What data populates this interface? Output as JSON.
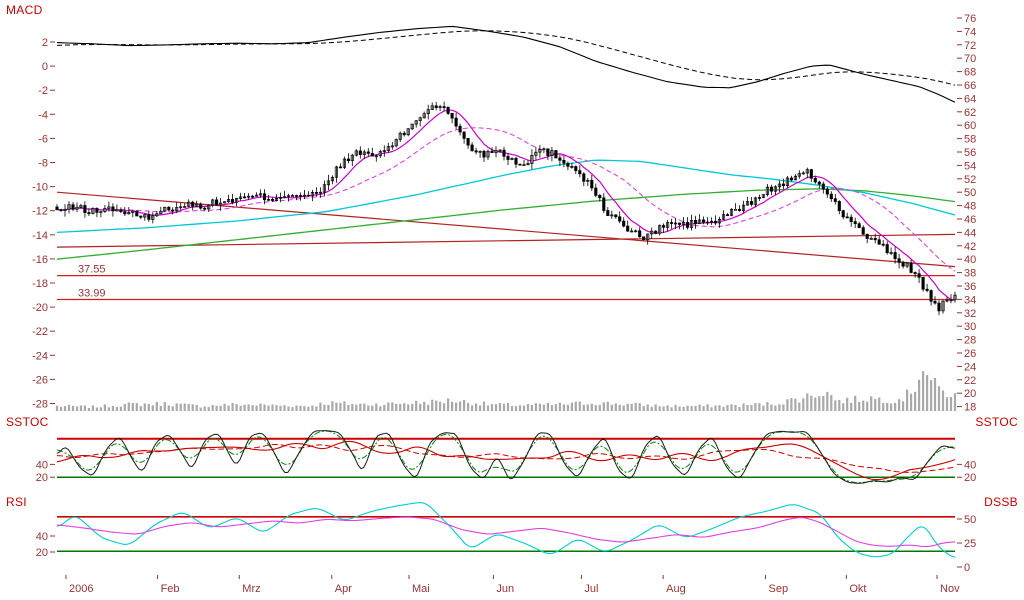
{
  "labels": {
    "macd": "MACD",
    "sstoc_left": "SSTOC",
    "sstoc_right": "SSTOC",
    "rsi": "RSI",
    "dssb": "DSSB"
  },
  "colors": {
    "background": "#ffffff",
    "axis_text": "#993333",
    "panel_label": "#cc0000",
    "candle": "#000000",
    "candle_up_fill": "#ffffff",
    "candle_down_fill": "#000000",
    "volume": "#a8a8a8",
    "macd_line": "#000000",
    "ma_fast": "#cc00cc",
    "ma_fast2": "#dd44dd",
    "ma_mid": "#00c8d8",
    "ma_long": "#2fae2f",
    "trendline": "#b22222",
    "hline": "#cc2222",
    "osc_fast": "#1a1a1a",
    "osc_d": "#008800",
    "osc_slow": "#cc0000",
    "osc_hline_hi": "#cc0000",
    "osc_hline_lo": "#007700",
    "rsi_line": "#e040e0",
    "dssb_line": "#00cfcf"
  },
  "chart_data": {
    "type": "candlestick-with-indicators",
    "x_axis": {
      "months": [
        {
          "label": "2006",
          "f": 0.01
        },
        {
          "label": "Feb",
          "f": 0.112
        },
        {
          "label": "Mrz",
          "f": 0.203
        },
        {
          "label": "Apr",
          "f": 0.306
        },
        {
          "label": "Mai",
          "f": 0.392
        },
        {
          "label": "Jun",
          "f": 0.486
        },
        {
          "label": "Jul",
          "f": 0.584
        },
        {
          "label": "Aug",
          "f": 0.675
        },
        {
          "label": "Sep",
          "f": 0.789
        },
        {
          "label": "Okt",
          "f": 0.879
        },
        {
          "label": "Nov",
          "f": 0.98
        }
      ]
    },
    "main_panel": {
      "left_axis_title": "MACD",
      "left_axis_range": [
        2,
        -28
      ],
      "left_ticks": [
        2,
        0,
        -2,
        -4,
        -6,
        -8,
        -10,
        -12,
        -14,
        -16,
        -18,
        -20,
        -22,
        -24,
        -26,
        -28
      ],
      "right_axis_range": [
        76,
        18
      ],
      "right_ticks": [
        76,
        74,
        72,
        70,
        68,
        66,
        64,
        62,
        60,
        58,
        56,
        54,
        52,
        50,
        48,
        46,
        44,
        42,
        40,
        38,
        36,
        34,
        32,
        30,
        28,
        26,
        24,
        22,
        20,
        18
      ],
      "hlines": [
        {
          "value": 37.55,
          "label": "37.55"
        },
        {
          "value": 33.99,
          "label": "33.99"
        }
      ],
      "trendlines": [
        {
          "p1": [
            0,
            50.0
          ],
          "p2": [
            1,
            38.9
          ]
        },
        {
          "p1": [
            0,
            41.8
          ],
          "p2": [
            1,
            43.7
          ]
        }
      ],
      "price_anchors": [
        [
          0,
          47.2
        ],
        [
          0.02,
          47.8
        ],
        [
          0.04,
          47.1
        ],
        [
          0.06,
          47.6
        ],
        [
          0.08,
          46.9
        ],
        [
          0.095,
          46.1
        ],
        [
          0.11,
          46.8
        ],
        [
          0.125,
          47.6
        ],
        [
          0.14,
          48.2
        ],
        [
          0.16,
          47.9
        ],
        [
          0.18,
          48.5
        ],
        [
          0.2,
          48.9
        ],
        [
          0.22,
          49.4
        ],
        [
          0.24,
          49.1
        ],
        [
          0.26,
          49.8
        ],
        [
          0.28,
          49.4
        ],
        [
          0.295,
          50.1
        ],
        [
          0.31,
          53.2
        ],
        [
          0.325,
          55.3
        ],
        [
          0.34,
          55.9
        ],
        [
          0.355,
          55.4
        ],
        [
          0.37,
          56.8
        ],
        [
          0.385,
          58.6
        ],
        [
          0.4,
          60.8
        ],
        [
          0.415,
          62.6
        ],
        [
          0.425,
          63.2
        ],
        [
          0.435,
          61.8
        ],
        [
          0.45,
          58.8
        ],
        [
          0.462,
          56.4
        ],
        [
          0.475,
          55.6
        ],
        [
          0.49,
          56.6
        ],
        [
          0.505,
          54.9
        ],
        [
          0.52,
          54.2
        ],
        [
          0.535,
          56.2
        ],
        [
          0.55,
          55.9
        ],
        [
          0.565,
          54.6
        ],
        [
          0.58,
          53.2
        ],
        [
          0.595,
          50.8
        ],
        [
          0.61,
          47.4
        ],
        [
          0.625,
          45.6
        ],
        [
          0.64,
          44.1
        ],
        [
          0.655,
          43.1
        ],
        [
          0.67,
          44.6
        ],
        [
          0.685,
          45.6
        ],
        [
          0.7,
          44.9
        ],
        [
          0.715,
          45.9
        ],
        [
          0.73,
          45.3
        ],
        [
          0.745,
          46.6
        ],
        [
          0.76,
          47.6
        ],
        [
          0.775,
          48.7
        ],
        [
          0.79,
          50.2
        ],
        [
          0.805,
          51.2
        ],
        [
          0.82,
          52.1
        ],
        [
          0.835,
          52.9
        ],
        [
          0.85,
          51.2
        ],
        [
          0.865,
          48.6
        ],
        [
          0.88,
          46.1
        ],
        [
          0.895,
          44.2
        ],
        [
          0.91,
          42.6
        ],
        [
          0.925,
          41.2
        ],
        [
          0.94,
          39.6
        ],
        [
          0.952,
          38.4
        ],
        [
          0.962,
          36.6
        ],
        [
          0.972,
          34.2
        ],
        [
          0.98,
          32.4
        ],
        [
          0.99,
          33.6
        ],
        [
          1,
          34.1
        ]
      ],
      "macd_anchors": [
        [
          0,
          1.95
        ],
        [
          0.04,
          1.85
        ],
        [
          0.08,
          1.7
        ],
        [
          0.12,
          1.75
        ],
        [
          0.16,
          1.85
        ],
        [
          0.2,
          1.9
        ],
        [
          0.24,
          1.85
        ],
        [
          0.28,
          1.95
        ],
        [
          0.32,
          2.4
        ],
        [
          0.36,
          2.8
        ],
        [
          0.4,
          3.1
        ],
        [
          0.44,
          3.3
        ],
        [
          0.48,
          2.9
        ],
        [
          0.52,
          2.4
        ],
        [
          0.56,
          1.6
        ],
        [
          0.6,
          0.4
        ],
        [
          0.64,
          -0.5
        ],
        [
          0.68,
          -1.3
        ],
        [
          0.72,
          -1.75
        ],
        [
          0.75,
          -1.8
        ],
        [
          0.78,
          -1.3
        ],
        [
          0.81,
          -0.6
        ],
        [
          0.84,
          0.0
        ],
        [
          0.86,
          0.1
        ],
        [
          0.88,
          -0.3
        ],
        [
          0.9,
          -0.7
        ],
        [
          0.93,
          -1.2
        ],
        [
          0.96,
          -1.7
        ],
        [
          0.98,
          -2.3
        ],
        [
          1,
          -3.0
        ]
      ],
      "ma_mid_anchors": [
        [
          0,
          44.0
        ],
        [
          0.1,
          44.7
        ],
        [
          0.2,
          45.7
        ],
        [
          0.3,
          47.1
        ],
        [
          0.4,
          49.6
        ],
        [
          0.5,
          52.6
        ],
        [
          0.55,
          53.9
        ],
        [
          0.6,
          54.8
        ],
        [
          0.65,
          54.6
        ],
        [
          0.7,
          53.6
        ],
        [
          0.75,
          52.6
        ],
        [
          0.8,
          51.9
        ],
        [
          0.85,
          51.0
        ],
        [
          0.9,
          49.9
        ],
        [
          0.95,
          48.4
        ],
        [
          1,
          46.6
        ]
      ],
      "ma_long_anchors": [
        [
          0,
          40.0
        ],
        [
          0.1,
          41.4
        ],
        [
          0.2,
          42.9
        ],
        [
          0.3,
          44.4
        ],
        [
          0.4,
          45.9
        ],
        [
          0.5,
          47.4
        ],
        [
          0.6,
          48.7
        ],
        [
          0.7,
          49.7
        ],
        [
          0.78,
          50.3
        ],
        [
          0.85,
          50.5
        ],
        [
          0.9,
          50.2
        ],
        [
          0.95,
          49.5
        ],
        [
          1,
          48.6
        ]
      ],
      "volume_profile": [
        [
          0,
          6
        ],
        [
          0.04,
          5
        ],
        [
          0.08,
          8
        ],
        [
          0.12,
          9
        ],
        [
          0.16,
          6
        ],
        [
          0.2,
          8
        ],
        [
          0.24,
          7
        ],
        [
          0.28,
          6
        ],
        [
          0.3,
          10
        ],
        [
          0.34,
          8
        ],
        [
          0.38,
          9
        ],
        [
          0.42,
          11
        ],
        [
          0.44,
          13
        ],
        [
          0.48,
          8
        ],
        [
          0.52,
          7
        ],
        [
          0.56,
          8
        ],
        [
          0.6,
          10
        ],
        [
          0.64,
          8
        ],
        [
          0.68,
          6
        ],
        [
          0.72,
          6
        ],
        [
          0.76,
          7
        ],
        [
          0.8,
          9
        ],
        [
          0.83,
          16
        ],
        [
          0.855,
          24
        ],
        [
          0.87,
          12
        ],
        [
          0.89,
          14
        ],
        [
          0.905,
          16
        ],
        [
          0.92,
          14
        ],
        [
          0.935,
          13
        ],
        [
          0.945,
          18
        ],
        [
          0.955,
          28
        ],
        [
          0.963,
          58
        ],
        [
          0.97,
          42
        ],
        [
          0.978,
          30
        ],
        [
          0.985,
          24
        ],
        [
          1,
          18
        ]
      ]
    },
    "sstoc_panel": {
      "left_ticks": [
        40,
        20
      ],
      "right_ticks": [
        40,
        20
      ],
      "hlines": [
        {
          "value": 80,
          "color_key": "osc_hline_hi",
          "width": 2
        },
        {
          "value": 20,
          "color_key": "osc_hline_lo",
          "width": 1.5
        }
      ],
      "fast_anchors": [
        [
          0,
          55
        ],
        [
          0.01,
          70
        ],
        [
          0.025,
          35
        ],
        [
          0.04,
          20
        ],
        [
          0.055,
          65
        ],
        [
          0.07,
          85
        ],
        [
          0.085,
          45
        ],
        [
          0.095,
          25
        ],
        [
          0.11,
          75
        ],
        [
          0.125,
          88
        ],
        [
          0.14,
          55
        ],
        [
          0.15,
          30
        ],
        [
          0.165,
          80
        ],
        [
          0.18,
          90
        ],
        [
          0.19,
          60
        ],
        [
          0.2,
          35
        ],
        [
          0.215,
          85
        ],
        [
          0.23,
          90
        ],
        [
          0.245,
          50
        ],
        [
          0.255,
          20
        ],
        [
          0.27,
          60
        ],
        [
          0.285,
          92
        ],
        [
          0.3,
          93
        ],
        [
          0.315,
          90
        ],
        [
          0.33,
          55
        ],
        [
          0.34,
          25
        ],
        [
          0.355,
          85
        ],
        [
          0.37,
          90
        ],
        [
          0.385,
          40
        ],
        [
          0.4,
          15
        ],
        [
          0.415,
          75
        ],
        [
          0.43,
          90
        ],
        [
          0.445,
          88
        ],
        [
          0.46,
          35
        ],
        [
          0.475,
          15
        ],
        [
          0.49,
          55
        ],
        [
          0.505,
          12
        ],
        [
          0.52,
          45
        ],
        [
          0.535,
          90
        ],
        [
          0.55,
          88
        ],
        [
          0.565,
          40
        ],
        [
          0.58,
          18
        ],
        [
          0.595,
          60
        ],
        [
          0.61,
          85
        ],
        [
          0.625,
          30
        ],
        [
          0.64,
          15
        ],
        [
          0.655,
          70
        ],
        [
          0.67,
          88
        ],
        [
          0.685,
          40
        ],
        [
          0.7,
          20
        ],
        [
          0.715,
          65
        ],
        [
          0.73,
          85
        ],
        [
          0.745,
          35
        ],
        [
          0.76,
          15
        ],
        [
          0.775,
          55
        ],
        [
          0.79,
          88
        ],
        [
          0.805,
          92
        ],
        [
          0.82,
          90
        ],
        [
          0.835,
          92
        ],
        [
          0.85,
          60
        ],
        [
          0.865,
          25
        ],
        [
          0.88,
          12
        ],
        [
          0.895,
          10
        ],
        [
          0.91,
          15
        ],
        [
          0.925,
          12
        ],
        [
          0.94,
          20
        ],
        [
          0.955,
          15
        ],
        [
          0.97,
          45
        ],
        [
          0.985,
          70
        ],
        [
          1,
          65
        ]
      ]
    },
    "rsi_panel": {
      "left_ticks": [
        40,
        20
      ],
      "right_ticks": [
        50,
        25,
        0
      ],
      "hlines": [
        {
          "scale": "left",
          "value": 64,
          "color_key": "osc_hline_hi",
          "width": 1.6
        },
        {
          "scale": "left",
          "value": 21,
          "color_key": "osc_hline_lo",
          "width": 1.5
        }
      ],
      "rsi_anchors": [
        [
          0,
          54
        ],
        [
          0.03,
          50
        ],
        [
          0.06,
          45
        ],
        [
          0.09,
          42
        ],
        [
          0.12,
          52
        ],
        [
          0.15,
          57
        ],
        [
          0.18,
          51
        ],
        [
          0.21,
          55
        ],
        [
          0.24,
          59
        ],
        [
          0.27,
          56
        ],
        [
          0.3,
          61
        ],
        [
          0.33,
          59
        ],
        [
          0.36,
          62
        ],
        [
          0.39,
          64
        ],
        [
          0.42,
          61
        ],
        [
          0.45,
          48
        ],
        [
          0.48,
          42
        ],
        [
          0.51,
          46
        ],
        [
          0.54,
          50
        ],
        [
          0.57,
          44
        ],
        [
          0.6,
          36
        ],
        [
          0.63,
          32
        ],
        [
          0.66,
          37
        ],
        [
          0.69,
          42
        ],
        [
          0.72,
          38
        ],
        [
          0.75,
          45
        ],
        [
          0.78,
          50
        ],
        [
          0.81,
          60
        ],
        [
          0.83,
          64
        ],
        [
          0.85,
          57
        ],
        [
          0.87,
          45
        ],
        [
          0.89,
          33
        ],
        [
          0.91,
          28
        ],
        [
          0.93,
          27
        ],
        [
          0.95,
          29
        ],
        [
          0.97,
          26
        ],
        [
          0.985,
          31
        ],
        [
          1,
          33
        ]
      ],
      "dssb_anchors": [
        [
          0,
          40
        ],
        [
          0.02,
          55
        ],
        [
          0.05,
          30
        ],
        [
          0.08,
          22
        ],
        [
          0.11,
          45
        ],
        [
          0.14,
          58
        ],
        [
          0.17,
          40
        ],
        [
          0.2,
          52
        ],
        [
          0.23,
          35
        ],
        [
          0.26,
          55
        ],
        [
          0.29,
          62
        ],
        [
          0.32,
          48
        ],
        [
          0.35,
          58
        ],
        [
          0.38,
          64
        ],
        [
          0.41,
          68
        ],
        [
          0.44,
          40
        ],
        [
          0.46,
          18
        ],
        [
          0.49,
          35
        ],
        [
          0.52,
          25
        ],
        [
          0.55,
          12
        ],
        [
          0.58,
          30
        ],
        [
          0.61,
          15
        ],
        [
          0.64,
          28
        ],
        [
          0.67,
          45
        ],
        [
          0.7,
          30
        ],
        [
          0.73,
          40
        ],
        [
          0.76,
          52
        ],
        [
          0.79,
          58
        ],
        [
          0.82,
          66
        ],
        [
          0.85,
          56
        ],
        [
          0.87,
          30
        ],
        [
          0.89,
          15
        ],
        [
          0.91,
          10
        ],
        [
          0.93,
          13
        ],
        [
          0.95,
          34
        ],
        [
          0.965,
          46
        ],
        [
          0.98,
          22
        ],
        [
          1,
          8
        ]
      ]
    }
  }
}
